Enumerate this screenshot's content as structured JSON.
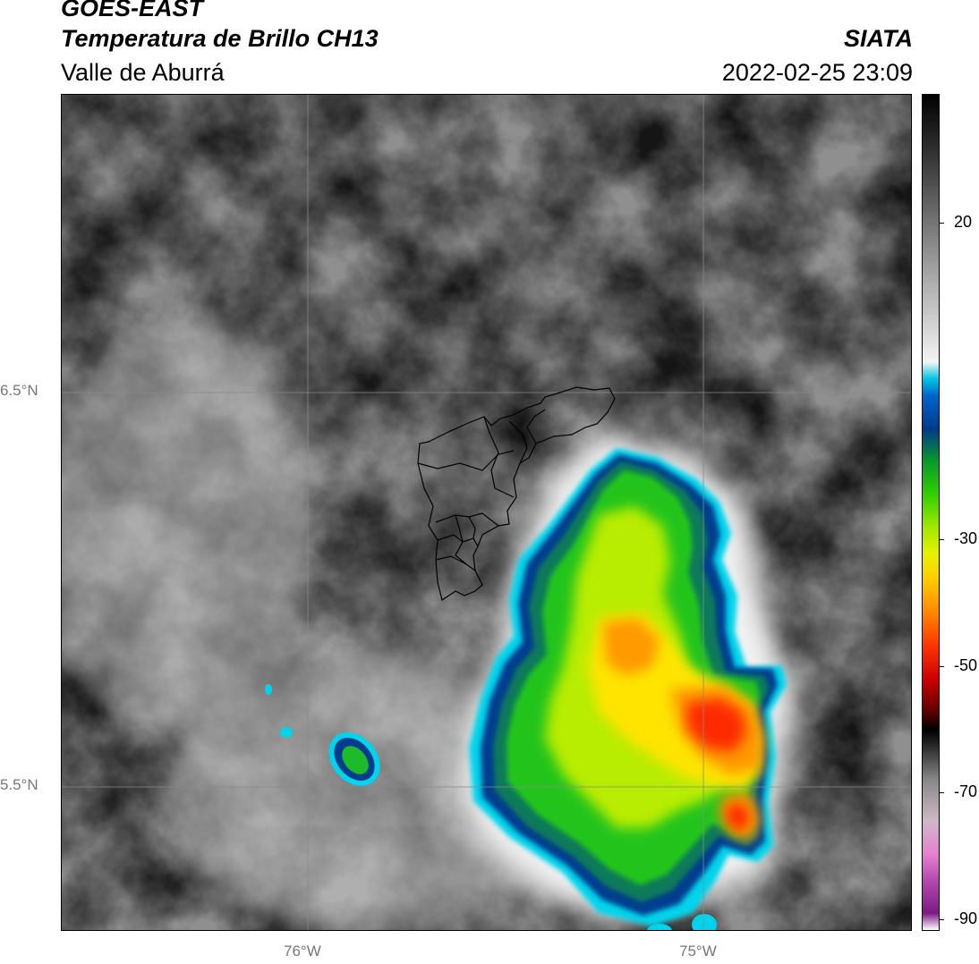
{
  "header": {
    "satellite": "GOES-EAST",
    "product": "Temperatura de Brillo CH13",
    "region": "Valle de Aburrá",
    "organization": "SIATA",
    "datetime": "2022-02-25 23:09"
  },
  "map": {
    "lat_labels": [
      "6.5°N",
      "5.5°N"
    ],
    "lon_labels": [
      "76°W",
      "75°W"
    ]
  },
  "colorbar": {
    "ticks": [
      "20",
      "-30",
      "-50",
      "-70",
      "-90"
    ],
    "range": [
      -92,
      29
    ]
  },
  "colors": {
    "gradient": [
      "#ffffff",
      "#7d1a86",
      "#b34bb0",
      "#e67fd0",
      "#d0b8c8",
      "#888888",
      "#2a2a2a",
      "#000000",
      "#5a0000",
      "#cc0000",
      "#ff3300",
      "#ff8800",
      "#ffcc00",
      "#e8f000",
      "#a8e800",
      "#38d000",
      "#0a9a2a",
      "#003a8a",
      "#0066cc",
      "#00c6e8",
      "#f4f4f4",
      "#9a9a9a",
      "#3a3a3a",
      "#000000"
    ]
  }
}
